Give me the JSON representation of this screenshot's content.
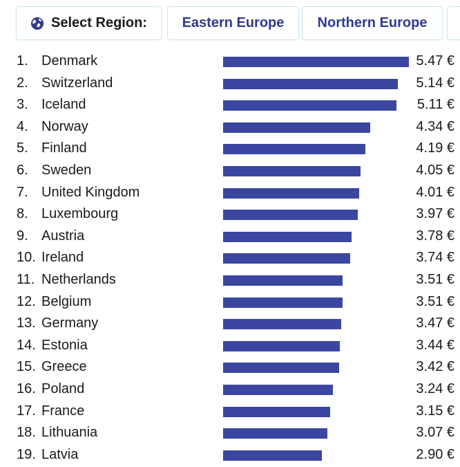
{
  "region_selector": {
    "label": "Select Region:",
    "tabs": [
      {
        "label": "Eastern Europe"
      },
      {
        "label": "Northern Europe"
      }
    ]
  },
  "colors": {
    "bar": "#3b46a0",
    "tab_text": "#303a8f",
    "globe": "#303a8f"
  },
  "chart_data": {
    "type": "bar",
    "orientation": "horizontal",
    "title": "",
    "xlabel": "",
    "ylabel": "",
    "unit": "€",
    "xlim": [
      0,
      5.47
    ],
    "categories": [
      "Denmark",
      "Switzerland",
      "Iceland",
      "Norway",
      "Finland",
      "Sweden",
      "United Kingdom",
      "Luxembourg",
      "Austria",
      "Ireland",
      "Netherlands",
      "Belgium",
      "Germany",
      "Estonia",
      "Greece",
      "Poland",
      "France",
      "Lithuania",
      "Latvia"
    ],
    "ranks": [
      "1.",
      "2.",
      "3.",
      "4.",
      "5.",
      "6.",
      "7.",
      "8.",
      "9.",
      "10.",
      "11.",
      "12.",
      "13.",
      "14.",
      "15.",
      "16.",
      "17.",
      "18.",
      "19."
    ],
    "values": [
      5.47,
      5.14,
      5.11,
      4.34,
      4.19,
      4.05,
      4.01,
      3.97,
      3.78,
      3.74,
      3.51,
      3.51,
      3.47,
      3.44,
      3.42,
      3.24,
      3.15,
      3.07,
      2.9
    ],
    "value_labels": [
      "5.47 €",
      "5.14 €",
      "5.11 €",
      "4.34 €",
      "4.19 €",
      "4.05 €",
      "4.01 €",
      "3.97 €",
      "3.78 €",
      "3.74 €",
      "3.51 €",
      "3.51 €",
      "3.47 €",
      "3.44 €",
      "3.42 €",
      "3.24 €",
      "3.15 €",
      "3.07 €",
      "2.90 €"
    ]
  }
}
